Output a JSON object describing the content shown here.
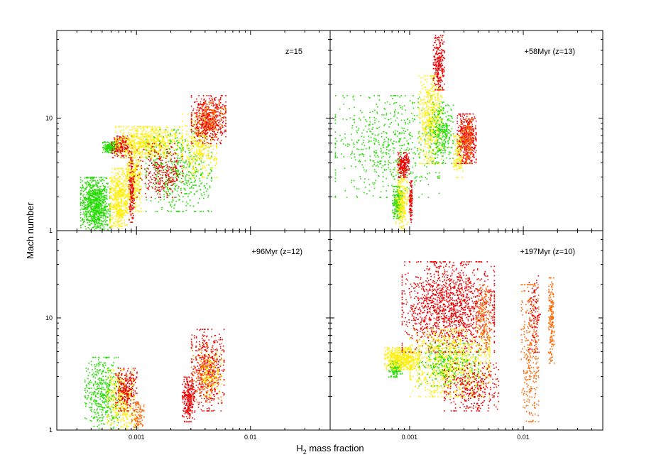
{
  "chart_data": {
    "type": "scatter",
    "title": "",
    "xlabel": "H",
    "xlabel_sub": "2",
    "xlabel_rest": " mass fraction",
    "ylabel": "Mach number",
    "xscale": "log",
    "yscale": "log",
    "xlim": [
      0.0002,
      0.05
    ],
    "ylim": [
      1,
      60
    ],
    "x_tick_labels": [
      "0.001",
      "0.01"
    ],
    "y_tick_labels": [
      "1",
      "10"
    ],
    "colors": {
      "green": "#22dd00",
      "yellow": "#ffee00",
      "orange": "#ff6600",
      "red": "#ee0000"
    },
    "panels": [
      {
        "label": "z=15",
        "clusters": [
          {
            "color": "green",
            "x": [
              0.00032,
              0.00058
            ],
            "y": [
              1.0,
              3.0
            ],
            "n": 900
          },
          {
            "color": "green",
            "x": [
              0.0005,
              0.00068
            ],
            "y": [
              5.0,
              6.2
            ],
            "n": 180
          },
          {
            "color": "yellow",
            "x": [
              0.00058,
              0.00085
            ],
            "y": [
              1.0,
              3.6
            ],
            "n": 550
          },
          {
            "color": "yellow",
            "x": [
              0.0008,
              0.0011
            ],
            "y": [
              1.5,
              6.0
            ],
            "n": 350
          },
          {
            "color": "red",
            "x": [
              0.00085,
              0.00095
            ],
            "y": [
              1.2,
              4.5
            ],
            "n": 160
          },
          {
            "color": "red",
            "x": [
              0.0006,
              0.0009
            ],
            "y": [
              4.5,
              7.0
            ],
            "n": 200
          },
          {
            "color": "yellow",
            "x": [
              0.00065,
              0.0025
            ],
            "y": [
              4.5,
              8.5
            ],
            "n": 700
          },
          {
            "color": "green",
            "x": [
              0.0012,
              0.0045
            ],
            "y": [
              1.5,
              8.0
            ],
            "n": 500
          },
          {
            "color": "red",
            "x": [
              0.001,
              0.0025
            ],
            "y": [
              2.0,
              6.0
            ],
            "n": 300
          },
          {
            "color": "yellow",
            "x": [
              0.0025,
              0.005
            ],
            "y": [
              3.0,
              11.0
            ],
            "n": 350
          },
          {
            "color": "red",
            "x": [
              0.003,
              0.006
            ],
            "y": [
              6.0,
              16.0
            ],
            "n": 500
          },
          {
            "color": "orange",
            "x": [
              0.0035,
              0.006
            ],
            "y": [
              8.0,
              14.0
            ],
            "n": 150
          }
        ]
      },
      {
        "label": "+58Myr (z=13)",
        "clusters": [
          {
            "color": "green",
            "x": [
              0.00022,
              0.0018
            ],
            "y": [
              2.0,
              16.0
            ],
            "n": 600
          },
          {
            "color": "green",
            "x": [
              0.0007,
              0.00085
            ],
            "y": [
              1.3,
              2.5
            ],
            "n": 200
          },
          {
            "color": "yellow",
            "x": [
              0.00075,
              0.00095
            ],
            "y": [
              1.0,
              3.5
            ],
            "n": 250
          },
          {
            "color": "red",
            "x": [
              0.00078,
              0.00098
            ],
            "y": [
              3.0,
              5.0
            ],
            "n": 200
          },
          {
            "color": "red",
            "x": [
              0.00098,
              0.00105
            ],
            "y": [
              1.2,
              2.8
            ],
            "n": 100
          },
          {
            "color": "yellow",
            "x": [
              0.0012,
              0.0019
            ],
            "y": [
              4.0,
              24.0
            ],
            "n": 500
          },
          {
            "color": "green",
            "x": [
              0.0015,
              0.0024
            ],
            "y": [
              4.0,
              14.0
            ],
            "n": 300
          },
          {
            "color": "red",
            "x": [
              0.0016,
              0.002
            ],
            "y": [
              18.0,
              55.0
            ],
            "n": 250
          },
          {
            "color": "red",
            "x": [
              0.0026,
              0.0038
            ],
            "y": [
              4.0,
              11.0
            ],
            "n": 450
          },
          {
            "color": "orange",
            "x": [
              0.0028,
              0.0036
            ],
            "y": [
              4.0,
              10.0
            ],
            "n": 150
          },
          {
            "color": "yellow",
            "x": [
              0.0024,
              0.0029
            ],
            "y": [
              3.0,
              7.0
            ],
            "n": 120
          }
        ]
      },
      {
        "label": "+96Myr (z=12)",
        "clusters": [
          {
            "color": "green",
            "x": [
              0.00035,
              0.0007
            ],
            "y": [
              1.0,
              4.5
            ],
            "n": 450
          },
          {
            "color": "yellow",
            "x": [
              0.00055,
              0.00095
            ],
            "y": [
              1.0,
              3.5
            ],
            "n": 350
          },
          {
            "color": "red",
            "x": [
              0.00065,
              0.001
            ],
            "y": [
              1.5,
              3.6
            ],
            "n": 260
          },
          {
            "color": "orange",
            "x": [
              0.0009,
              0.00115
            ],
            "y": [
              1.0,
              1.8
            ],
            "n": 100
          },
          {
            "color": "red",
            "x": [
              0.0025,
              0.0032
            ],
            "y": [
              1.2,
              3.0
            ],
            "n": 250
          },
          {
            "color": "red",
            "x": [
              0.003,
              0.0058
            ],
            "y": [
              1.5,
              8.0
            ],
            "n": 450
          },
          {
            "color": "orange",
            "x": [
              0.003,
              0.0055
            ],
            "y": [
              1.8,
              6.0
            ],
            "n": 200
          },
          {
            "color": "yellow",
            "x": [
              0.0035,
              0.0055
            ],
            "y": [
              2.0,
              5.0
            ],
            "n": 100
          }
        ]
      },
      {
        "label": "+197Myr (z=10)",
        "clusters": [
          {
            "color": "green",
            "x": [
              0.00065,
              0.00085
            ],
            "y": [
              3.0,
              4.2
            ],
            "n": 150
          },
          {
            "color": "yellow",
            "x": [
              0.0006,
              0.0012
            ],
            "y": [
              3.5,
              5.5
            ],
            "n": 500
          },
          {
            "color": "red",
            "x": [
              0.00085,
              0.0055
            ],
            "y": [
              5.0,
              32.0
            ],
            "n": 1500
          },
          {
            "color": "yellow",
            "x": [
              0.001,
              0.005
            ],
            "y": [
              2.0,
              8.0
            ],
            "n": 900
          },
          {
            "color": "green",
            "x": [
              0.0012,
              0.004
            ],
            "y": [
              2.5,
              6.0
            ],
            "n": 250
          },
          {
            "color": "red",
            "x": [
              0.002,
              0.006
            ],
            "y": [
              1.5,
              4.0
            ],
            "n": 350
          },
          {
            "color": "orange",
            "x": [
              0.0038,
              0.0052
            ],
            "y": [
              5.0,
              20.0
            ],
            "n": 200
          },
          {
            "color": "orange",
            "x": [
              0.0095,
              0.0135
            ],
            "y": [
              1.2,
              20.0
            ],
            "n": 300
          },
          {
            "color": "red",
            "x": [
              0.011,
              0.014
            ],
            "y": [
              5.0,
              24.0
            ],
            "n": 100
          },
          {
            "color": "orange",
            "x": [
              0.0165,
              0.0185
            ],
            "y": [
              4.0,
              23.0
            ],
            "n": 180
          }
        ]
      }
    ]
  }
}
